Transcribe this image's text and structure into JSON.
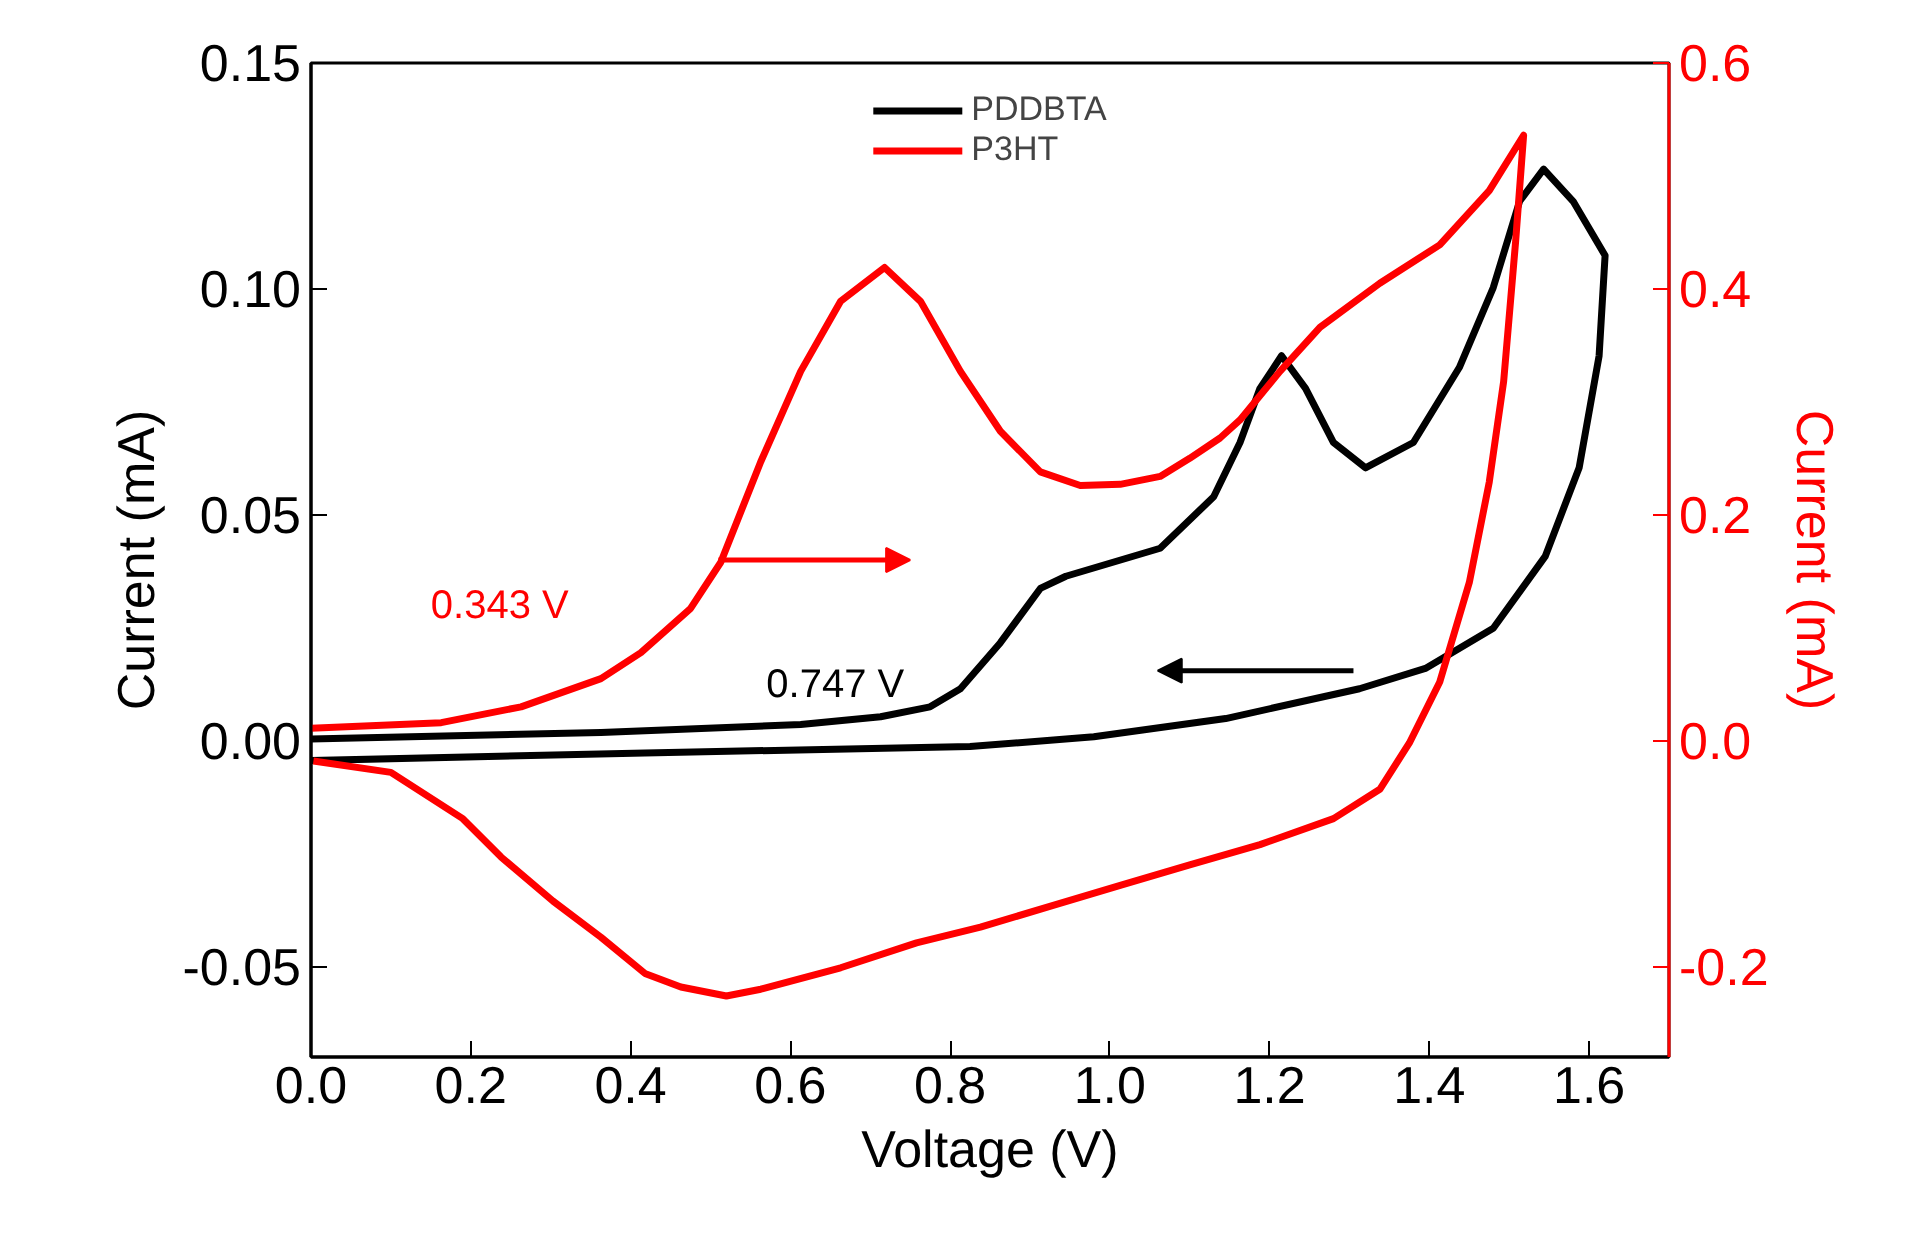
{
  "chart_data": {
    "type": "line",
    "xlabel": "Voltage (V)",
    "ylabel": "Current (mA)",
    "y2label": "Current (mA)",
    "xlim": [
      0,
      1.7
    ],
    "xticks": [
      {
        "value": 0,
        "label": "0.0"
      },
      0.2,
      0.4,
      0.6,
      0.8,
      {
        "value": 1,
        "label": "1.0"
      },
      1.2,
      1.4,
      1.6
    ],
    "ylim": [
      -0.07,
      0.15
    ],
    "yticks": [
      {
        "value": -0.05,
        "label": "-0.05"
      },
      {
        "value": 0,
        "label": "0.00"
      },
      {
        "value": 0.05,
        "label": "0.05"
      },
      {
        "value": 0.1,
        "label": "0.10"
      },
      0.15
    ],
    "y2lim": [
      -0.28,
      0.6
    ],
    "y2ticks": [
      {
        "value": -0.2,
        "label": "-0.2"
      },
      {
        "value": 0,
        "label": "0.0"
      },
      0.2,
      0.4,
      0.6
    ],
    "grid": false,
    "legend": "top",
    "line_style": "solid",
    "marker": "none",
    "annotations": [
      "0.343 V",
      "0.747 V"
    ],
    "series": [
      {
        "name": "PDDBTA",
        "color": "#000000",
        "x": [
          0,
          0.363,
          0.613,
          0.713,
          0.775,
          0.813,
          0.863,
          0.913,
          0.945,
          1.063,
          1.13,
          1.163,
          1.188,
          1.215,
          1.245,
          1.28,
          1.32,
          1.38,
          1.4375,
          1.48,
          1.513,
          1.543,
          1.58,
          1.62,
          1.6125,
          1.5875,
          1.545,
          1.48,
          1.395,
          1.3125,
          1.145,
          0.98,
          0.825,
          0.418,
          0
        ],
        "values": [
          0.0004,
          0.0018,
          0.0036,
          0.0053,
          0.0075,
          0.0115,
          0.0217,
          0.0337,
          0.0364,
          0.0426,
          0.054,
          0.066,
          0.078,
          0.0852,
          0.078,
          0.066,
          0.0604,
          0.066,
          0.0826,
          0.1003,
          0.1194,
          0.1265,
          0.1194,
          0.1074,
          0.0852,
          0.0604,
          0.0408,
          0.0249,
          0.016,
          0.0115,
          0.0049,
          0.0009,
          -0.0013,
          -0.0027,
          -0.0044
        ]
      },
      {
        "name": "P3HT",
        "color": "#ff0000",
        "axis": "y2",
        "x": [
          0,
          0.163,
          0.263,
          0.363,
          0.413,
          0.475,
          0.513,
          0.563,
          0.613,
          0.663,
          0.718,
          0.763,
          0.813,
          0.863,
          0.913,
          0.963,
          1.013,
          1.063,
          1.1,
          1.138,
          1.163,
          1.213,
          1.263,
          1.338,
          1.413,
          1.475,
          1.518,
          1.508,
          1.493,
          1.475,
          1.45,
          1.413,
          1.375,
          1.338,
          1.28,
          1.188,
          1.1,
          1.013,
          0.928,
          0.838,
          0.758,
          0.663,
          0.563,
          0.52,
          0.463,
          0.418,
          0.363,
          0.303,
          0.238,
          0.19,
          0.1,
          0.003
        ],
        "values": [
          0.011,
          0.016,
          0.03,
          0.055,
          0.078,
          0.117,
          0.158,
          0.247,
          0.327,
          0.389,
          0.419,
          0.389,
          0.327,
          0.274,
          0.238,
          0.226,
          0.227,
          0.234,
          0.25,
          0.268,
          0.284,
          0.327,
          0.366,
          0.405,
          0.439,
          0.487,
          0.536,
          0.442,
          0.318,
          0.229,
          0.14,
          0.052,
          -0.002,
          -0.043,
          -0.069,
          -0.092,
          -0.11,
          -0.128,
          -0.146,
          -0.165,
          -0.179,
          -0.201,
          -0.22,
          -0.226,
          -0.218,
          -0.206,
          -0.174,
          -0.142,
          -0.103,
          -0.069,
          -0.028,
          -0.018
        ]
      }
    ]
  }
}
